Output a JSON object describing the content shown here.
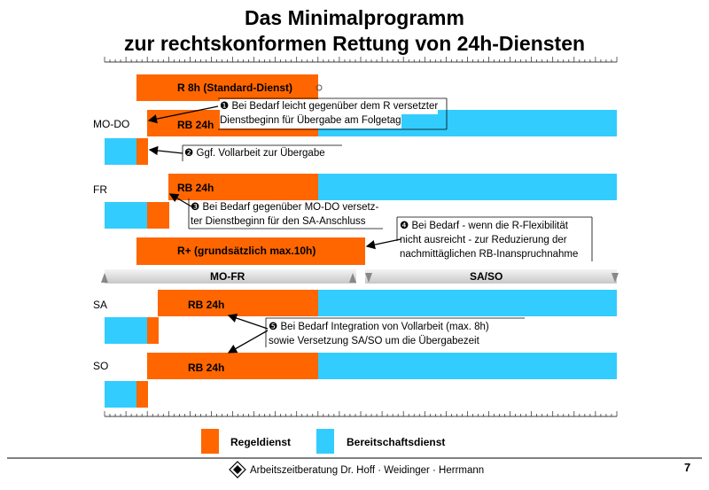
{
  "title": {
    "line1": "Das Minimalprogramm",
    "line2": "zur rechtskonformen Rettung von 24h-Diensten"
  },
  "rows": {
    "mo_do": "MO-DO",
    "fr": "FR",
    "sa": "SA",
    "so": "SO"
  },
  "bars": {
    "r8h": "R 8h (Standard-Dienst)",
    "rb24h": "RB 24h",
    "rplus": "R+ (grundsätzlich max.10h)"
  },
  "notes": {
    "n1_line1": "❶ Bei Bedarf leicht gegenüber dem R versetzter",
    "n1_line2": "Dienstbeginn für Übergabe am Folgetag",
    "n2": "❷ Ggf. Vollarbeit zur Übergabe",
    "n3_line1": "❸ Bei Bedarf gegenüber MO-DO versetz-",
    "n3_line2": "ter Dienstbeginn für den SA-Anschluss",
    "n4_line1": "❹ Bei Bedarf - wenn die R-Flexibilität",
    "n4_line2": "nicht ausreicht - zur Reduzierung der",
    "n4_line3": "nachmittäglichen RB-Inanspruchnahme",
    "n5_line1": "❺ Bei Bedarf Integration von Vollarbeit (max. 8h)",
    "n5_line2": "sowie Versetzung SA/SO um die Übergabezeit"
  },
  "separators": {
    "left": "MO-FR",
    "right": "SA/SO"
  },
  "legend": {
    "regel": "Regeldienst",
    "bereit": "Bereitschaftsdienst"
  },
  "footer": {
    "company": "Arbeitszeitberatung Dr. Hoff · Weidinger · Herrmann",
    "page": "7"
  },
  "colors": {
    "regeldienst": "#ff6600",
    "bereitschaftsdienst": "#33ccff"
  }
}
